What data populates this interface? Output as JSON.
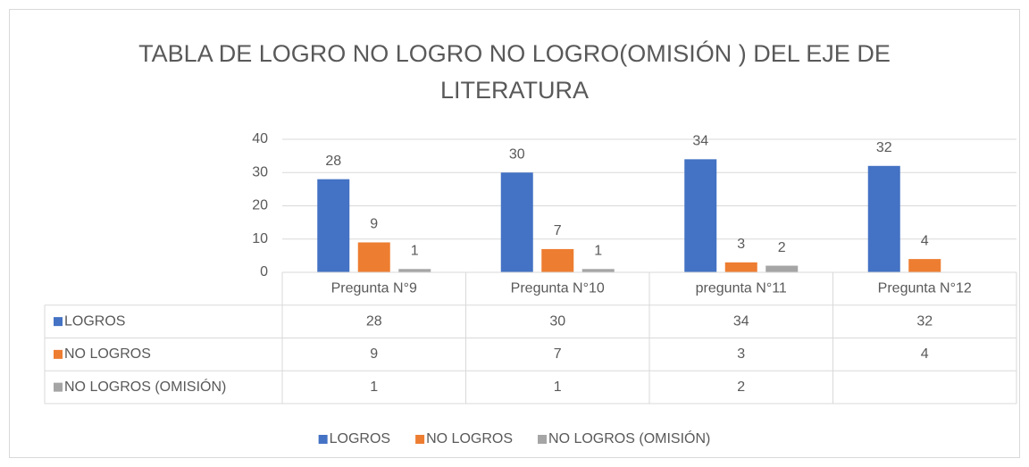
{
  "chart_data": {
    "type": "bar",
    "title": "TABLA DE LOGRO NO LOGRO NO LOGRO(OMISIÓN ) DEL EJE DE LITERATURA",
    "categories": [
      "Pregunta N°9",
      "Pregunta N°10",
      "pregunta N°11",
      "Pregunta N°12"
    ],
    "series": [
      {
        "name": "LOGROS",
        "color": "#4472c4",
        "values": [
          28,
          30,
          34,
          32
        ]
      },
      {
        "name": "NO LOGROS",
        "color": "#ed7d31",
        "values": [
          9,
          7,
          3,
          4
        ]
      },
      {
        "name": "NO LOGROS (OMISIÓN)",
        "color": "#a5a5a5",
        "values": [
          1,
          1,
          2,
          null
        ]
      }
    ],
    "ylim": [
      0,
      40
    ],
    "yticks": [
      0,
      10,
      20,
      30,
      40
    ],
    "grid": true,
    "legend": "bottom",
    "data_table": true
  }
}
